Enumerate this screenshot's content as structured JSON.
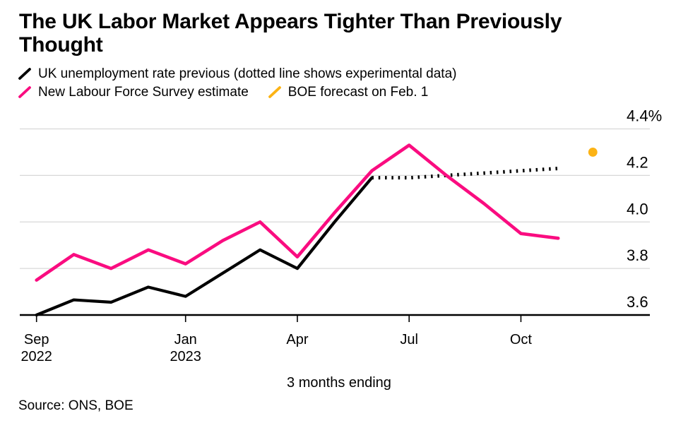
{
  "header": {
    "title_lines": [
      "The UK Labor Market Appears Tighter Than Previously",
      "Thought"
    ]
  },
  "legend": {
    "items": [
      {
        "label": "UK unemployment rate previous (dotted line shows experimental data)",
        "color": "#000000"
      },
      {
        "label": "New Labour Force Survey estimate",
        "color": "#FA0C80"
      },
      {
        "label": "BOE forecast on Feb. 1",
        "color": "#FCB315"
      }
    ]
  },
  "chart_data": {
    "type": "line",
    "title": "The UK Labor Market Appears Tighter Than Previously Thought",
    "xlabel": "3 months ending",
    "source": "Source: ONS, BOE",
    "ylim": [
      3.6,
      4.4
    ],
    "grid": "horizontal",
    "legend_position": "top-left",
    "y_ticks": [
      {
        "value": 4.4,
        "label": "4.4%"
      },
      {
        "value": 4.2,
        "label": "4.2"
      },
      {
        "value": 4.0,
        "label": "4.0"
      },
      {
        "value": 3.8,
        "label": "3.8"
      },
      {
        "value": 3.6,
        "label": "3.6"
      }
    ],
    "categories": [
      "Sep 2022",
      "Oct 2022",
      "Nov 2022",
      "Dec 2022",
      "Jan 2023",
      "Feb 2023",
      "Mar 2023",
      "Apr 2023",
      "May 2023",
      "Jun 2023",
      "Jul 2023",
      "Aug 2023",
      "Sep 2023",
      "Oct 2023",
      "Nov 2023"
    ],
    "x_ticks": [
      {
        "index": 0,
        "label": "Sep",
        "sublabel": "2022"
      },
      {
        "index": 4,
        "label": "Jan",
        "sublabel": "2023"
      },
      {
        "index": 7,
        "label": "Apr",
        "sublabel": ""
      },
      {
        "index": 10,
        "label": "Jul",
        "sublabel": ""
      },
      {
        "index": 13,
        "label": "Oct",
        "sublabel": ""
      }
    ],
    "series": [
      {
        "name": "UK unemployment rate previous",
        "line_style": "solid",
        "color": "#000000",
        "values": [
          3.6,
          3.665,
          3.655,
          3.72,
          3.68,
          3.78,
          3.88,
          3.8,
          4.0,
          4.19,
          null,
          null,
          null,
          null,
          null
        ]
      },
      {
        "name": "UK unemployment rate previous (experimental data, dotted)",
        "line_style": "dotted",
        "color": "#000000",
        "values": [
          null,
          null,
          null,
          null,
          null,
          null,
          null,
          null,
          null,
          4.19,
          4.19,
          4.2,
          4.21,
          4.22,
          4.23
        ]
      },
      {
        "name": "New Labour Force Survey estimate",
        "line_style": "solid",
        "color": "#FA0C80",
        "values": [
          3.75,
          3.86,
          3.8,
          3.88,
          3.82,
          3.92,
          4.0,
          3.85,
          4.04,
          4.22,
          4.33,
          4.2,
          4.08,
          3.95,
          3.93
        ]
      }
    ],
    "forecast_point": {
      "name": "BOE forecast on Feb. 1",
      "color": "#FCB315",
      "x_index": 14.93,
      "value": 4.3
    }
  }
}
